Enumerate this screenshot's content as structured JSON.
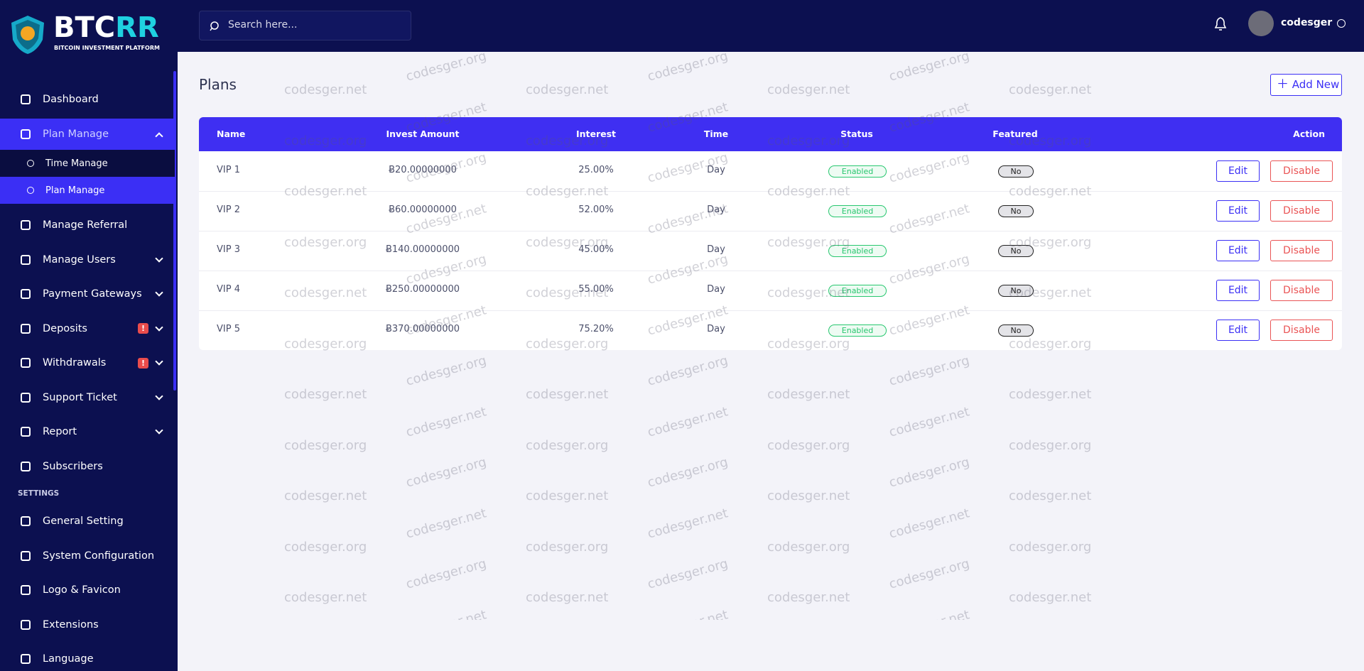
{
  "brand": {
    "parts": [
      "BTC",
      "RR"
    ],
    "tagline": "BITCOIN INVESTMENT PLATFORM"
  },
  "search_placeholder": "Search here...",
  "user": "codesger",
  "sidebar": {
    "items": [
      {
        "label": "Dashboard"
      },
      {
        "label": "Plan Manage",
        "expandable": true,
        "open": true,
        "active": true,
        "children": [
          {
            "label": "Time Manage"
          },
          {
            "label": "Plan Manage",
            "active": true
          }
        ]
      },
      {
        "label": "Manage Referral"
      },
      {
        "label": "Manage Users",
        "expandable": true
      },
      {
        "label": "Payment Gateways",
        "expandable": true
      },
      {
        "label": "Deposits",
        "expandable": true,
        "badge": "!"
      },
      {
        "label": "Withdrawals",
        "expandable": true,
        "badge": "!"
      },
      {
        "label": "Support Ticket",
        "expandable": true
      },
      {
        "label": "Report",
        "expandable": true
      },
      {
        "label": "Subscribers"
      }
    ],
    "settings_label": "SETTINGS",
    "settings_items": [
      {
        "label": "General Setting"
      },
      {
        "label": "System Configuration"
      },
      {
        "label": "Logo & Favicon"
      },
      {
        "label": "Extensions"
      },
      {
        "label": "Language"
      }
    ]
  },
  "page_title": "Plans",
  "add_button": "Add New",
  "table": {
    "columns": [
      "Name",
      "Invest Amount",
      "Interest",
      "Time",
      "Status",
      "Featured",
      "Action"
    ],
    "rows": [
      [
        "VIP 1",
        "Ƀ20.00000000",
        "25.00%",
        "Day",
        "Enabled",
        "No"
      ],
      [
        "VIP 2",
        "Ƀ60.00000000",
        "52.00%",
        "Day",
        "Enabled",
        "No"
      ],
      [
        "VIP 3",
        "Ƀ140.00000000",
        "45.00%",
        "Day",
        "Enabled",
        "No"
      ],
      [
        "VIP 4",
        "Ƀ250.00000000",
        "55.00%",
        "Day",
        "Enabled",
        "No"
      ],
      [
        "VIP 5",
        "Ƀ370.00000000",
        "75.20%",
        "Day",
        "Enabled",
        "No"
      ]
    ],
    "actions": [
      "Edit",
      "Disable"
    ]
  },
  "watermarks": [
    "codesger.net",
    "codesger.org"
  ]
}
